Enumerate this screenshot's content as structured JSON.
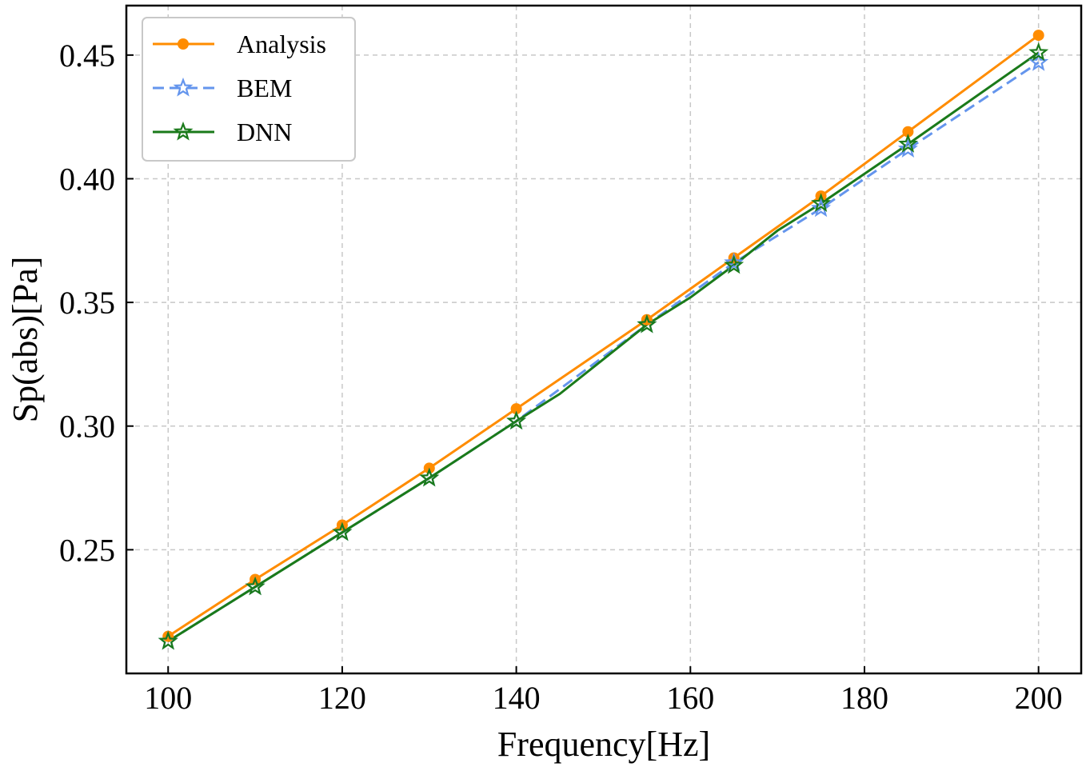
{
  "chart_data": {
    "type": "line",
    "title": "",
    "xlabel": "Frequency[Hz]",
    "ylabel": "Sp(abs)[Pa]",
    "xlim": [
      95.2,
      204.9
    ],
    "ylim": [
      0.2,
      0.47
    ],
    "xticks": [
      100,
      120,
      140,
      160,
      180,
      200
    ],
    "xtick_labels": [
      "100",
      "120",
      "140",
      "160",
      "180",
      "200"
    ],
    "yticks": [
      0.25,
      0.3,
      0.35,
      0.4,
      0.45
    ],
    "ytick_labels": [
      "0.25",
      "0.30",
      "0.35",
      "0.40",
      "0.45"
    ],
    "grid": true,
    "legend_position": "top-left",
    "series": [
      {
        "name": "Analysis",
        "color": "#ff8c00",
        "line_style": "solid",
        "marker": "circle",
        "x": [
          100,
          110,
          120,
          130,
          140,
          155,
          165,
          175,
          185,
          200
        ],
        "y": [
          0.215,
          0.238,
          0.26,
          0.283,
          0.307,
          0.343,
          0.368,
          0.393,
          0.419,
          0.458
        ]
      },
      {
        "name": "BEM",
        "color": "#6495ed",
        "line_style": "dashed",
        "marker": "star",
        "x": [
          100,
          110,
          120,
          130,
          140,
          155,
          165,
          175,
          185,
          200
        ],
        "y": [
          0.213,
          0.235,
          0.257,
          0.279,
          0.302,
          0.341,
          0.366,
          0.388,
          0.412,
          0.447
        ]
      },
      {
        "name": "DNN",
        "color": "#1a7a1a",
        "line_style": "solid",
        "marker": "star",
        "x": [
          100,
          110,
          120,
          130,
          140,
          145,
          155,
          160,
          165,
          170,
          175,
          185,
          200
        ],
        "y": [
          0.213,
          0.235,
          0.257,
          0.279,
          0.302,
          0.313,
          0.341,
          0.352,
          0.365,
          0.379,
          0.39,
          0.414,
          0.451
        ],
        "marker_x": [
          100,
          110,
          120,
          130,
          140,
          155,
          165,
          175,
          185,
          200
        ]
      }
    ]
  }
}
